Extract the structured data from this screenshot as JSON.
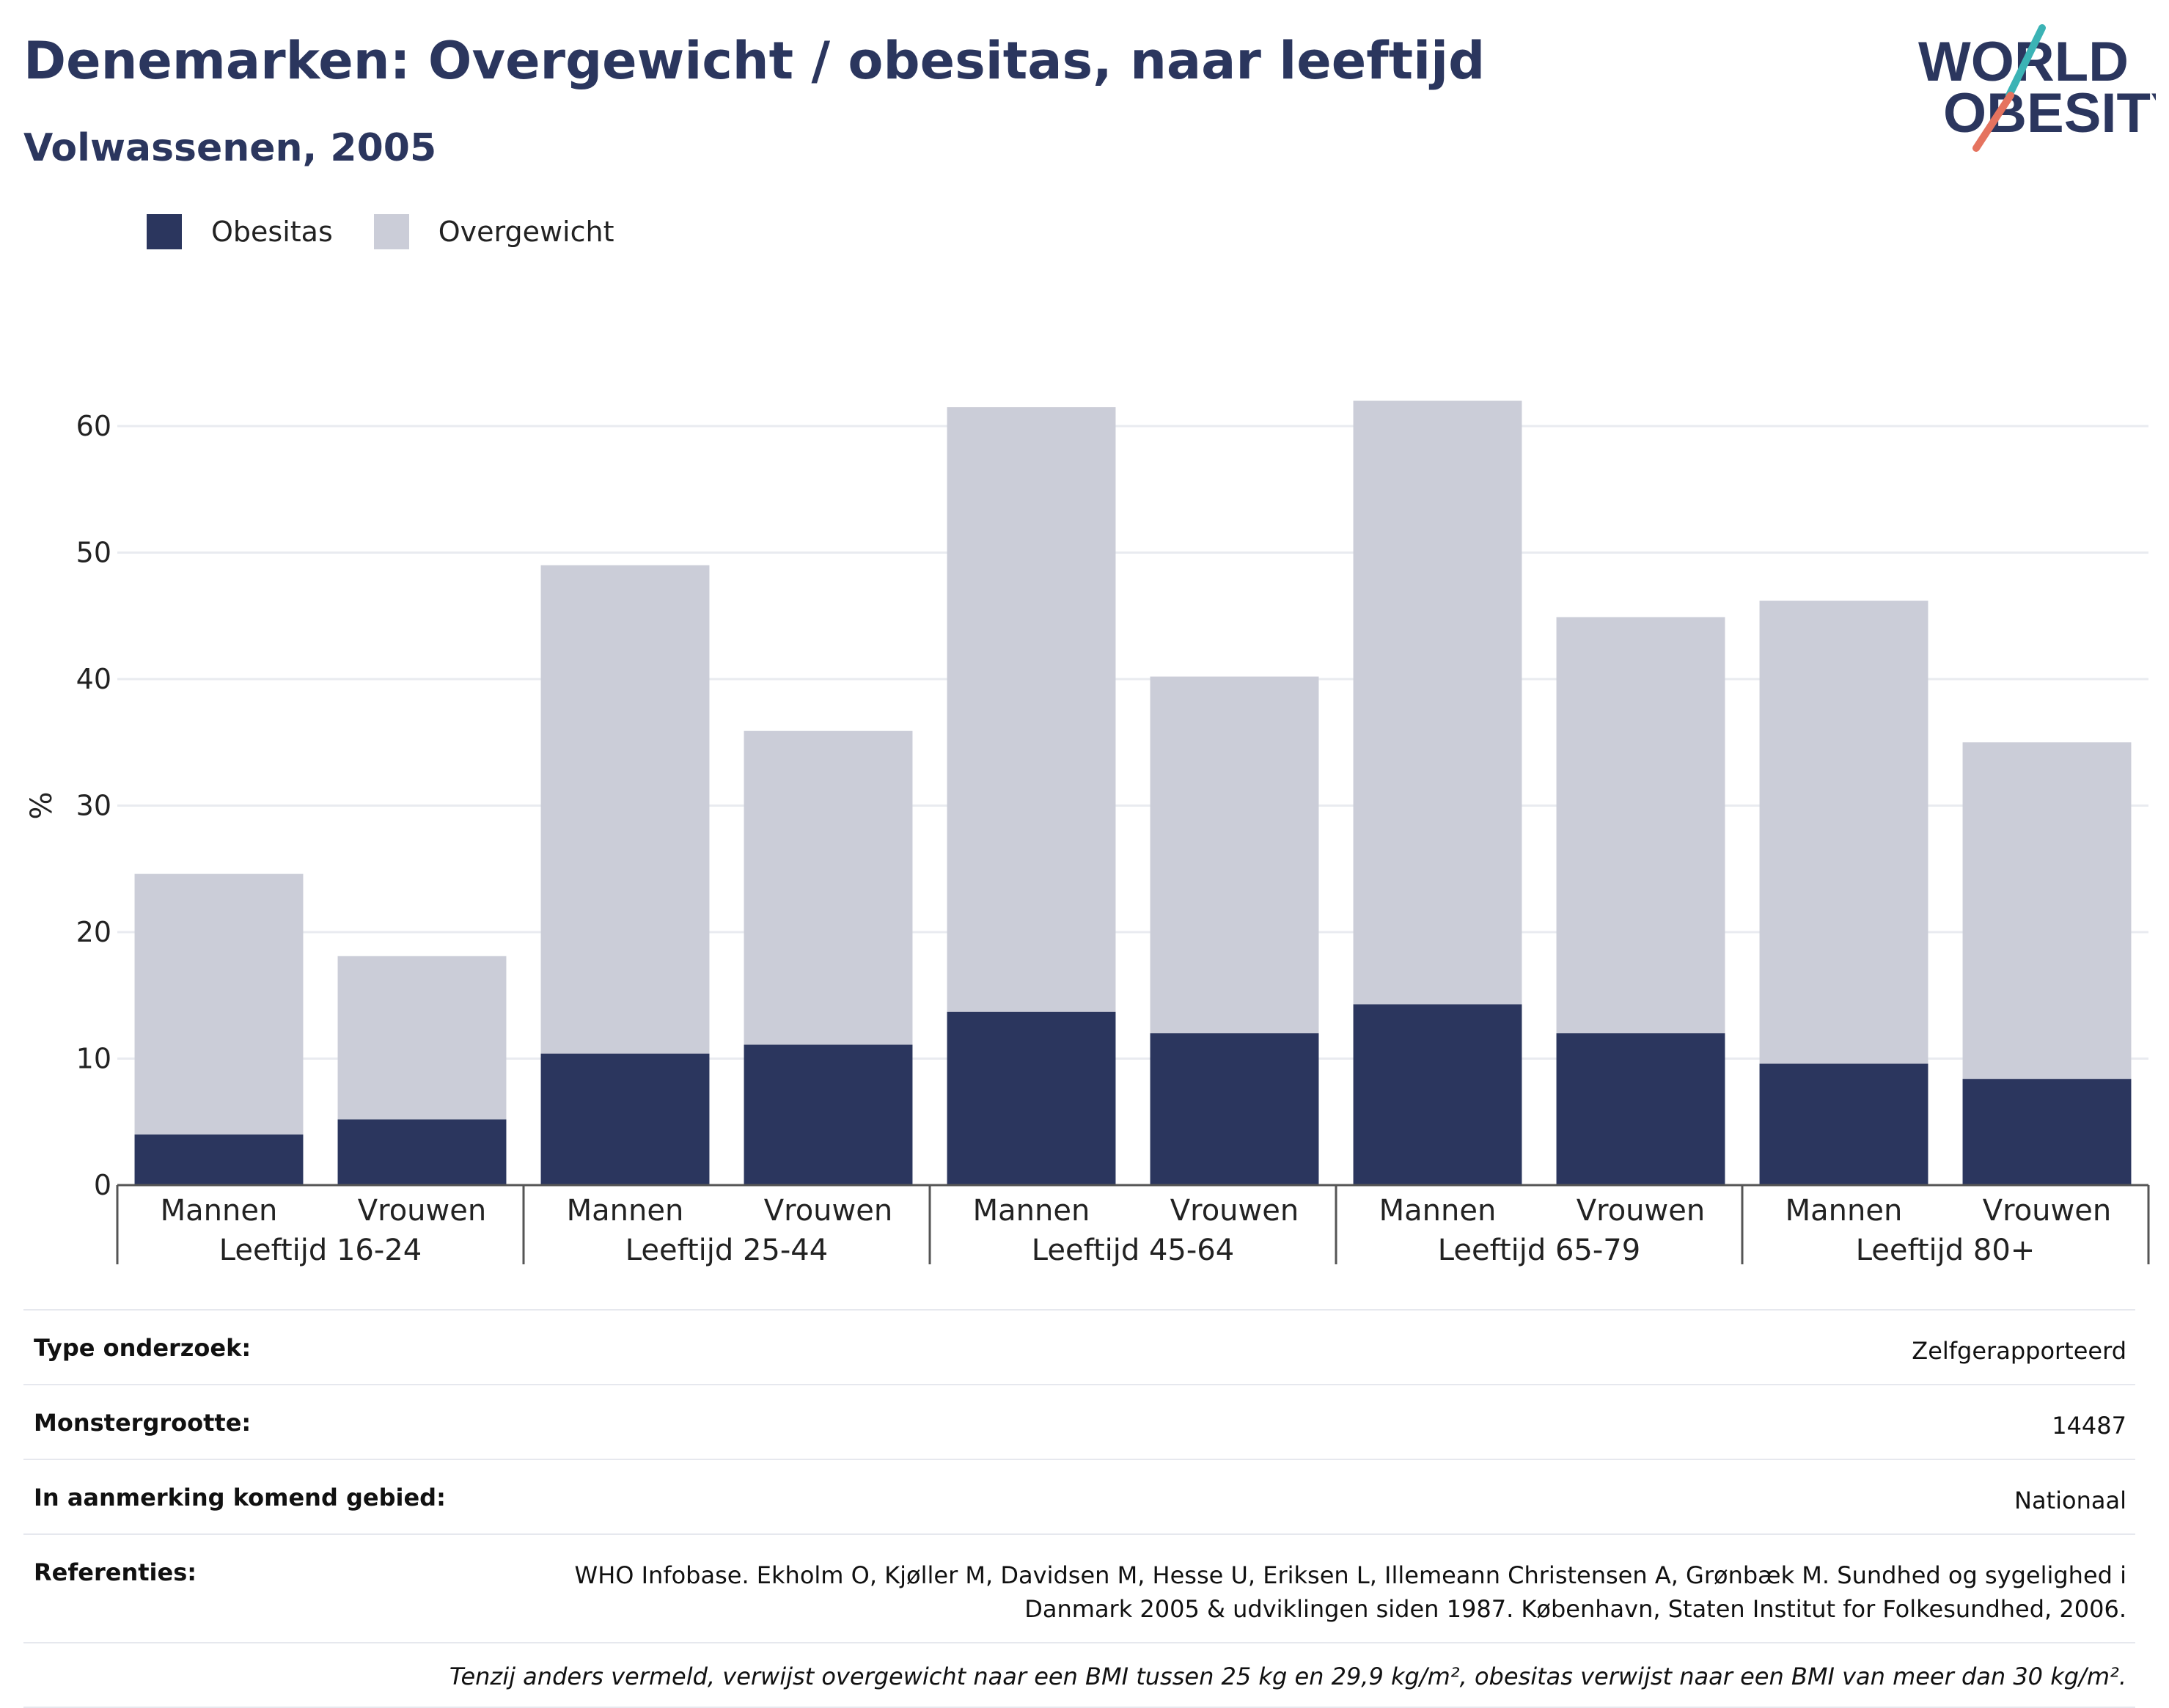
{
  "title": "Denemarken: Overgewicht / obesitas, naar leeftijd",
  "subtitle": "Volwassenen, 2005",
  "logo": {
    "line1": "WORLD",
    "line2": "OBESITY"
  },
  "legend": [
    {
      "label": "Obesitas",
      "color": "#2b365e"
    },
    {
      "label": "Overgewicht",
      "color": "#cbcdd8"
    }
  ],
  "chart_data": {
    "type": "bar",
    "stacked": true,
    "ylabel": "%",
    "xlabel": "",
    "ylim": [
      0,
      65
    ],
    "yticks": [
      0,
      10,
      20,
      30,
      40,
      50,
      60
    ],
    "grid": true,
    "legend_position": "top-left",
    "groups": [
      "Leeftijd 16-24",
      "Leeftijd 25-44",
      "Leeftijd 45-64",
      "Leeftijd 65-79",
      "Leeftijd 80+"
    ],
    "subcategories": [
      "Mannen",
      "Vrouwen"
    ],
    "categories": [
      "Mannen",
      "Vrouwen",
      "Mannen",
      "Vrouwen",
      "Mannen",
      "Vrouwen",
      "Mannen",
      "Vrouwen",
      "Mannen",
      "Vrouwen"
    ],
    "series": [
      {
        "name": "Obesitas",
        "color": "#2b365e",
        "values": [
          4,
          5.2,
          10.4,
          11.1,
          13.7,
          12,
          14.3,
          12,
          9.6,
          8.4
        ]
      },
      {
        "name": "Overgewicht",
        "color": "#cbcdd8",
        "values": [
          20.6,
          12.9,
          38.6,
          24.8,
          47.8,
          28.2,
          47.7,
          32.9,
          36.6,
          26.6
        ]
      }
    ]
  },
  "info": {
    "rows": [
      {
        "label": "Type onderzoek:",
        "value": "Zelfgerapporteerd"
      },
      {
        "label": "Monstergrootte:",
        "value": "14487"
      },
      {
        "label": "In aanmerking komend gebied:",
        "value": "Nationaal"
      },
      {
        "label": "Referenties:",
        "value": "WHO Infobase. Ekholm O, Kjøller M, Davidsen M, Hesse U, Eriksen L, Illemeann Christensen A, Grønbæk M. Sundhed og sygelighed i Danmark 2005 & udviklingen siden 1987. København, Staten Institut for Folkesundhed, 2006."
      }
    ],
    "note": "Tenzij anders vermeld, verwijst overgewicht naar een BMI tussen 25 kg en 29,9 kg/m², obesitas verwijst naar een BMI van meer dan 30 kg/m²."
  }
}
